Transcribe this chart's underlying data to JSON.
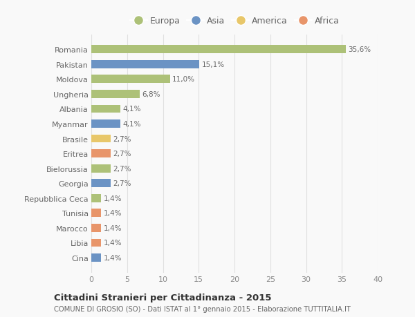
{
  "categories": [
    "Romania",
    "Pakistan",
    "Moldova",
    "Ungheria",
    "Albania",
    "Myanmar",
    "Brasile",
    "Eritrea",
    "Bielorussia",
    "Georgia",
    "Repubblica Ceca",
    "Tunisia",
    "Marocco",
    "Libia",
    "Cina"
  ],
  "values": [
    35.6,
    15.1,
    11.0,
    6.8,
    4.1,
    4.1,
    2.7,
    2.7,
    2.7,
    2.7,
    1.4,
    1.4,
    1.4,
    1.4,
    1.4
  ],
  "colors": [
    "#adc178",
    "#6b93c4",
    "#adc178",
    "#adc178",
    "#adc178",
    "#6b93c4",
    "#e8c76a",
    "#e8956a",
    "#adc178",
    "#6b93c4",
    "#adc178",
    "#e8956a",
    "#e8956a",
    "#e8956a",
    "#6b93c4"
  ],
  "labels": [
    "35,6%",
    "15,1%",
    "11,0%",
    "6,8%",
    "4,1%",
    "4,1%",
    "2,7%",
    "2,7%",
    "2,7%",
    "2,7%",
    "1,4%",
    "1,4%",
    "1,4%",
    "1,4%",
    "1,4%"
  ],
  "legend": [
    {
      "label": "Europa",
      "color": "#adc178"
    },
    {
      "label": "Asia",
      "color": "#6b93c4"
    },
    {
      "label": "America",
      "color": "#e8c76a"
    },
    {
      "label": "Africa",
      "color": "#e8956a"
    }
  ],
  "title": "Cittadini Stranieri per Cittadinanza - 2015",
  "subtitle": "COMUNE DI GROSIO (SO) - Dati ISTAT al 1° gennaio 2015 - Elaborazione TUTTITALIA.IT",
  "xlim": [
    0,
    40
  ],
  "xticks": [
    0,
    5,
    10,
    15,
    20,
    25,
    30,
    35,
    40
  ],
  "background_color": "#f9f9f9",
  "grid_color": "#e0e0e0"
}
